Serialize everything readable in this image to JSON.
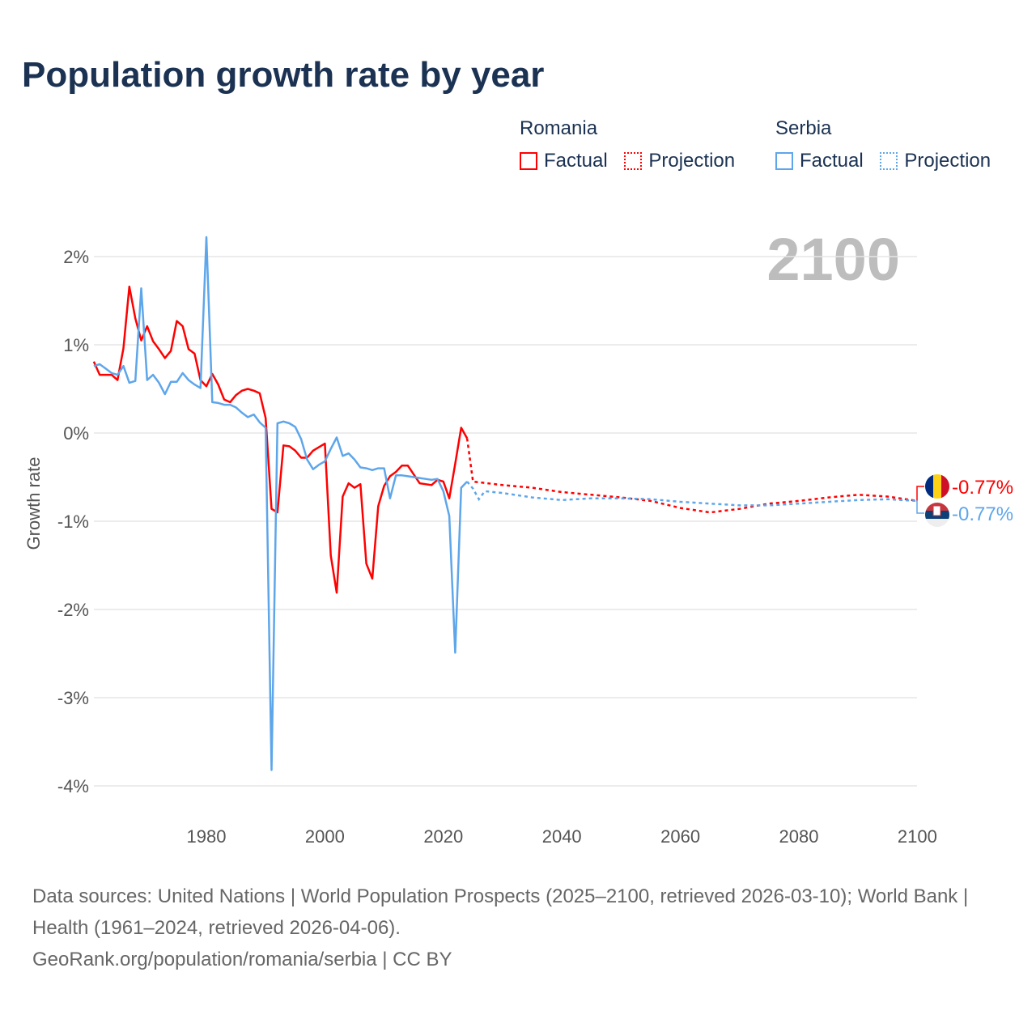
{
  "title": "Population growth rate by year",
  "year_label": "2100",
  "footer": {
    "sources": "Data sources: United Nations | World Population Prospects (2025–2100, retrieved 2026-03-10); World Bank | Health (1961–2024, retrieved 2026-04-06).",
    "credit": "GeoRank.org/population/romania/serbia | CC BY"
  },
  "chart_data": {
    "type": "line",
    "title": "Population growth rate by year",
    "xlabel": "",
    "ylabel": "Growth rate",
    "xlim": [
      1961,
      2100
    ],
    "ylim": [
      -4.3,
      2.5
    ],
    "x_ticks": [
      1980,
      2000,
      2020,
      2040,
      2060,
      2080,
      2100
    ],
    "x_tick_labels": [
      "1980",
      "2000",
      "2020",
      "2040",
      "2060",
      "2080",
      "2100"
    ],
    "y_ticks": [
      2,
      1,
      0,
      -1,
      -2,
      -3,
      -4
    ],
    "y_tick_labels": [
      "2%",
      "1%",
      "0%",
      "-1%",
      "-2%",
      "-3%",
      "-4%"
    ],
    "grid": true,
    "legend_placement": "top-right",
    "legend": {
      "factual_label": "Factual",
      "projection_label": "Projection"
    },
    "series": [
      {
        "name": "Romania",
        "color": "#ff0000",
        "end_label": "-0.77%",
        "factual_start": 1961,
        "factual": [
          0.81,
          0.66,
          0.66,
          0.66,
          0.6,
          0.96,
          1.66,
          1.3,
          1.05,
          1.21,
          1.04,
          0.95,
          0.85,
          0.93,
          1.27,
          1.21,
          0.95,
          0.9,
          0.6,
          0.53,
          0.67,
          0.55,
          0.38,
          0.35,
          0.43,
          0.48,
          0.5,
          0.48,
          0.45,
          0.17,
          -0.86,
          -0.9,
          -0.14,
          -0.15,
          -0.2,
          -0.28,
          -0.28,
          -0.2,
          -0.16,
          -0.12,
          -1.39,
          -1.81,
          -0.72,
          -0.57,
          -0.62,
          -0.58,
          -1.48,
          -1.65,
          -0.83,
          -0.6,
          -0.49,
          -0.44,
          -0.37,
          -0.37,
          -0.47,
          -0.57,
          -0.58,
          -0.59,
          -0.53,
          -0.55,
          -0.74,
          -0.35,
          0.06,
          -0.06
        ],
        "projection": [
          [
            2024,
            -0.06
          ],
          [
            2025,
            -0.55
          ],
          [
            2030,
            -0.59
          ],
          [
            2035,
            -0.62
          ],
          [
            2040,
            -0.67
          ],
          [
            2045,
            -0.7
          ],
          [
            2050,
            -0.73
          ],
          [
            2055,
            -0.77
          ],
          [
            2060,
            -0.85
          ],
          [
            2065,
            -0.9
          ],
          [
            2070,
            -0.86
          ],
          [
            2075,
            -0.8
          ],
          [
            2080,
            -0.77
          ],
          [
            2085,
            -0.73
          ],
          [
            2090,
            -0.7
          ],
          [
            2095,
            -0.72
          ],
          [
            2100,
            -0.77
          ]
        ]
      },
      {
        "name": "Serbia",
        "color": "#5ea6ea",
        "end_label": "-0.77%",
        "factual_start": 1961,
        "factual": [
          0.76,
          0.78,
          0.73,
          0.68,
          0.66,
          0.76,
          0.57,
          0.59,
          1.64,
          0.6,
          0.66,
          0.57,
          0.44,
          0.58,
          0.58,
          0.68,
          0.6,
          0.55,
          0.51,
          2.22,
          0.35,
          0.34,
          0.32,
          0.32,
          0.29,
          0.23,
          0.18,
          0.21,
          0.12,
          0.06,
          -3.82,
          0.11,
          0.13,
          0.11,
          0.07,
          -0.07,
          -0.3,
          -0.41,
          -0.36,
          -0.32,
          -0.18,
          -0.05,
          -0.26,
          -0.23,
          -0.3,
          -0.39,
          -0.4,
          -0.42,
          -0.4,
          -0.4,
          -0.74,
          -0.48,
          -0.48,
          -0.49,
          -0.5,
          -0.51,
          -0.52,
          -0.53,
          -0.52,
          -0.66,
          -0.94,
          -2.49,
          -0.62,
          -0.55
        ],
        "projection": [
          [
            2024,
            -0.55
          ],
          [
            2025,
            -0.63
          ],
          [
            2026,
            -0.75
          ],
          [
            2027,
            -0.66
          ],
          [
            2030,
            -0.68
          ],
          [
            2035,
            -0.73
          ],
          [
            2040,
            -0.76
          ],
          [
            2045,
            -0.74
          ],
          [
            2050,
            -0.74
          ],
          [
            2055,
            -0.75
          ],
          [
            2060,
            -0.78
          ],
          [
            2065,
            -0.8
          ],
          [
            2070,
            -0.82
          ],
          [
            2075,
            -0.82
          ],
          [
            2080,
            -0.8
          ],
          [
            2085,
            -0.78
          ],
          [
            2090,
            -0.76
          ],
          [
            2095,
            -0.75
          ],
          [
            2100,
            -0.77
          ]
        ]
      }
    ]
  }
}
